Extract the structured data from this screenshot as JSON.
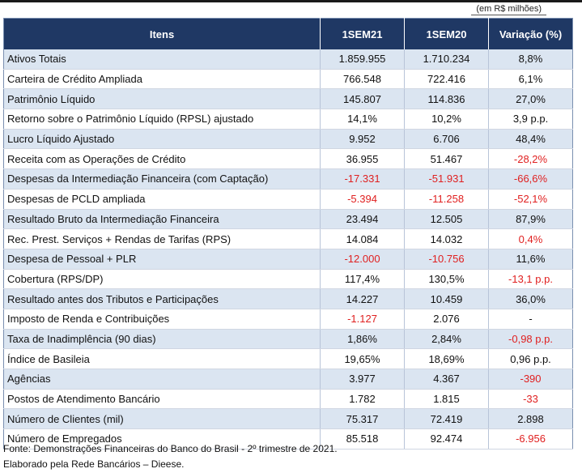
{
  "unit_note": "(em R$ milhões)",
  "table": {
    "headers": [
      "Itens",
      "1SEM21",
      "1SEM20",
      "Variação (%)"
    ],
    "rows": [
      {
        "item": "Ativos Totais",
        "sem21": "1.859.955",
        "sem20": "1.710.234",
        "var": "8,8%"
      },
      {
        "item": "Carteira de Crédito Ampliada",
        "sem21": "766.548",
        "sem20": "722.416",
        "var": "6,1%"
      },
      {
        "item": "Patrimônio Líquido",
        "sem21": "145.807",
        "sem20": "114.836",
        "var": "27,0%"
      },
      {
        "item": "Retorno sobre o Patrimônio Líquido (RPSL) ajustado",
        "sem21": "14,1%",
        "sem20": "10,2%",
        "var": "3,9 p.p."
      },
      {
        "item": "Lucro Líquido Ajustado",
        "sem21": "9.952",
        "sem20": "6.706",
        "var": "48,4%"
      },
      {
        "item": "Receita com as Operações de Crédito",
        "sem21": "36.955",
        "sem20": "51.467",
        "var": "-28,2%"
      },
      {
        "item": "Despesas da Intermediação Financeira (com Captação)",
        "sem21": "-17.331",
        "sem20": "-51.931",
        "var": "-66,6%"
      },
      {
        "item": "Despesas de PCLD ampliada",
        "sem21": "-5.394",
        "sem20": "-11.258",
        "var": "-52,1%"
      },
      {
        "item": "Resultado Bruto da Intermediação Financeira",
        "sem21": "23.494",
        "sem20": "12.505",
        "var": "87,9%"
      },
      {
        "item": "Rec. Prest. Serviços + Rendas de Tarifas (RPS)",
        "sem21": "14.084",
        "sem20": "14.032",
        "var": "0,4%"
      },
      {
        "item": "Despesa de Pessoal + PLR",
        "sem21": "-12.000",
        "sem20": "-10.756",
        "var": "11,6%"
      },
      {
        "item": "Cobertura (RPS/DP)",
        "sem21": "117,4%",
        "sem20": "130,5%",
        "var": "-13,1 p.p."
      },
      {
        "item": "Resultado antes dos Tributos e Participações",
        "sem21": "14.227",
        "sem20": "10.459",
        "var": "36,0%"
      },
      {
        "item": "Imposto de Renda e Contribuições",
        "sem21": "-1.127",
        "sem20": "2.076",
        "var": "-"
      },
      {
        "item": "Taxa de Inadimplência (90 dias)",
        "sem21": "1,86%",
        "sem20": "2,84%",
        "var": "-0,98 p.p."
      },
      {
        "item": "Índice de Basileia",
        "sem21": "19,65%",
        "sem20": "18,69%",
        "var": "0,96 p.p."
      },
      {
        "item": "Agências",
        "sem21": "3.977",
        "sem20": "4.367",
        "var": "-390"
      },
      {
        "item": "Postos de Atendimento Bancário",
        "sem21": "1.782",
        "sem20": "1.815",
        "var": "-33"
      },
      {
        "item": "Número de Clientes (mil)",
        "sem21": "75.317",
        "sem20": "72.419",
        "var": "2.898"
      },
      {
        "item": "Número de Empregados",
        "sem21": "85.518",
        "sem20": "92.474",
        "var": "-6.956"
      }
    ],
    "red_cells": {
      "sem21": [
        6,
        7,
        10,
        13
      ],
      "sem20": [
        6,
        7,
        10
      ],
      "var": [
        5,
        6,
        7,
        9,
        11,
        14,
        16,
        17,
        19
      ]
    }
  },
  "footer": {
    "source": "Fonte: Demonstrações Financeiras do Banco do Brasil - 2º trimestre de 2021.",
    "credit": "Elaborado pela Rede Bancários – Dieese."
  },
  "colors": {
    "header_bg": "#1f3864",
    "row_stripe": "#dbe5f1",
    "negative_text": "#e02020"
  }
}
